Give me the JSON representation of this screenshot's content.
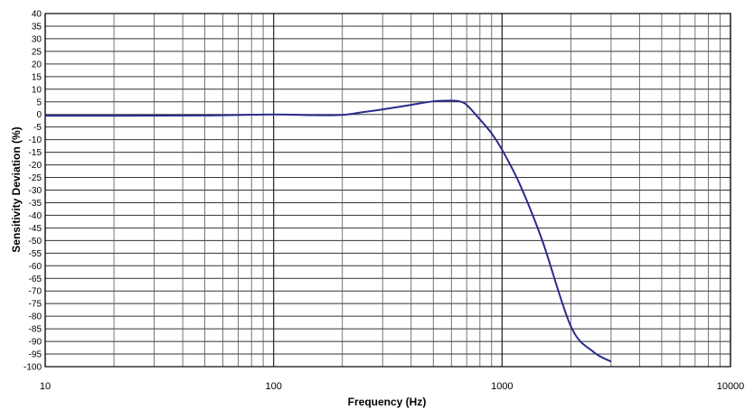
{
  "chart_data": {
    "type": "line",
    "title": "",
    "xlabel": "Frequency (Hz)",
    "ylabel": "Sensitivity Deviation (%)",
    "xscale": "log",
    "xlim": [
      10,
      10000
    ],
    "ylim": [
      -100,
      40
    ],
    "grid": true,
    "x_ticks": [
      "10",
      "100",
      "1000",
      "10000"
    ],
    "y_ticks": [
      "40",
      "35",
      "30",
      "25",
      "20",
      "15",
      "10",
      "5",
      "0",
      "-5",
      "-10",
      "-15",
      "-20",
      "-25",
      "-30",
      "-35",
      "-40",
      "-45",
      "-50",
      "-55",
      "-60",
      "-65",
      "-70",
      "-75",
      "-80",
      "-85",
      "-90",
      "-95",
      "-100"
    ],
    "line_color": "#2b2b8c",
    "series": [
      {
        "name": "",
        "x": [
          10,
          20,
          50,
          100,
          150,
          200,
          250,
          300,
          400,
          500,
          600,
          650,
          700,
          800,
          900,
          1000,
          1200,
          1500,
          2000,
          2500,
          3000
        ],
        "y": [
          -0.5,
          -0.5,
          -0.4,
          0.0,
          -0.3,
          -0.2,
          1.0,
          2.0,
          3.8,
          5.2,
          5.5,
          5.2,
          3.8,
          -2.0,
          -7.5,
          -14.0,
          -28.0,
          -50.0,
          -84.0,
          -94.0,
          -98.0
        ]
      }
    ]
  }
}
